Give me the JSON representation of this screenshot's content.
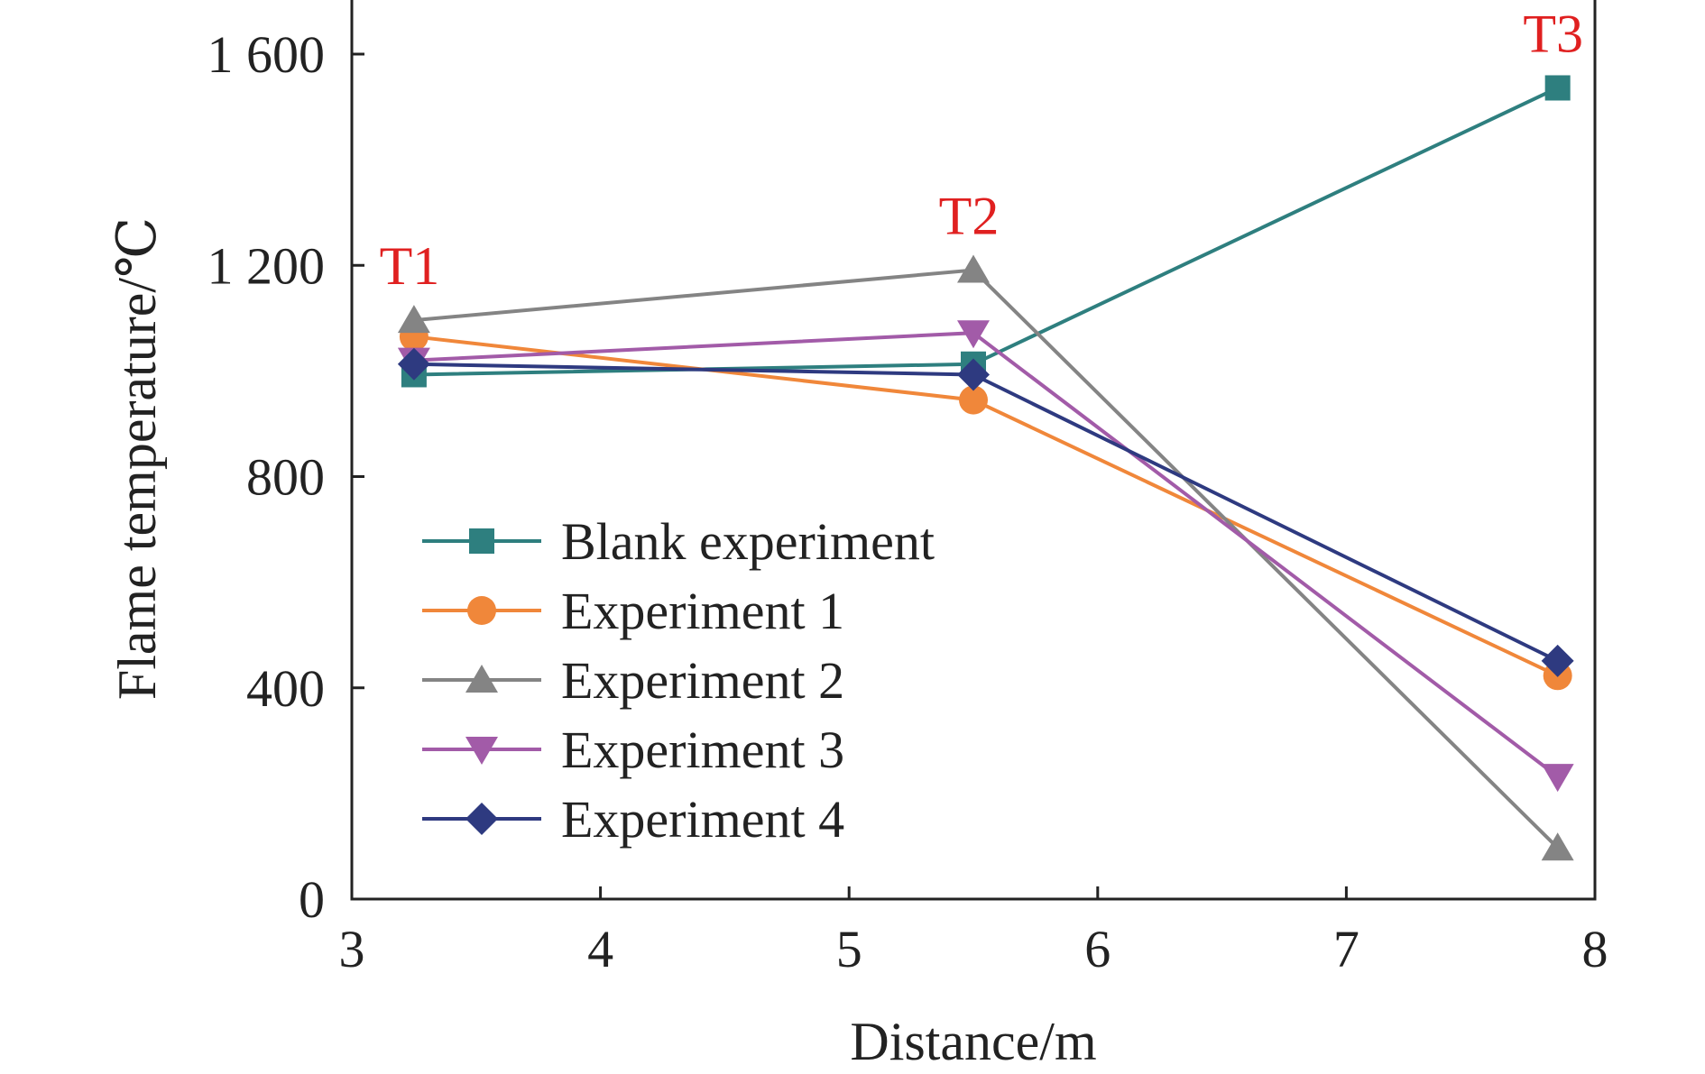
{
  "chart_data": {
    "type": "line",
    "title": "",
    "xlabel": "Distance/m",
    "ylabel": "Flame temperature/℃",
    "xlim": [
      3,
      8
    ],
    "ylim": [
      0,
      1600
    ],
    "xticks": [
      3,
      4,
      5,
      6,
      7,
      8
    ],
    "yticks": [
      0,
      400,
      800,
      1200,
      1600
    ],
    "xtick_labels": [
      "3",
      "4",
      "5",
      "6",
      "7",
      "8"
    ],
    "ytick_labels": [
      "0",
      "400",
      "800",
      "1 200",
      "1 600"
    ],
    "grid": false,
    "legend_position": "center-left",
    "x": [
      3.25,
      5.5,
      7.85
    ],
    "series": [
      {
        "name": "Blank experiment",
        "values": [
          993,
          1013,
          1536
        ],
        "color": "#2e7f7f",
        "marker": "square"
      },
      {
        "name": "Experiment 1",
        "values": [
          1065,
          945,
          423
        ],
        "color": "#f0873a",
        "marker": "circle"
      },
      {
        "name": "Experiment 2",
        "values": [
          1096,
          1191,
          97
        ],
        "color": "#848484",
        "marker": "triangle-up"
      },
      {
        "name": "Experiment 3",
        "values": [
          1020,
          1072,
          232
        ],
        "color": "#a25ba8",
        "marker": "triangle-down"
      },
      {
        "name": "Experiment 4",
        "values": [
          1013,
          993,
          451
        ],
        "color": "#2e3a80",
        "marker": "diamond"
      }
    ],
    "annotations": [
      {
        "text": "T1",
        "x": 3.25,
        "y": 1096,
        "color": "#e02020"
      },
      {
        "text": "T2",
        "x": 5.5,
        "y": 1191,
        "color": "#e02020"
      },
      {
        "text": "T3",
        "x": 7.85,
        "y": 1536,
        "color": "#e02020"
      }
    ]
  }
}
